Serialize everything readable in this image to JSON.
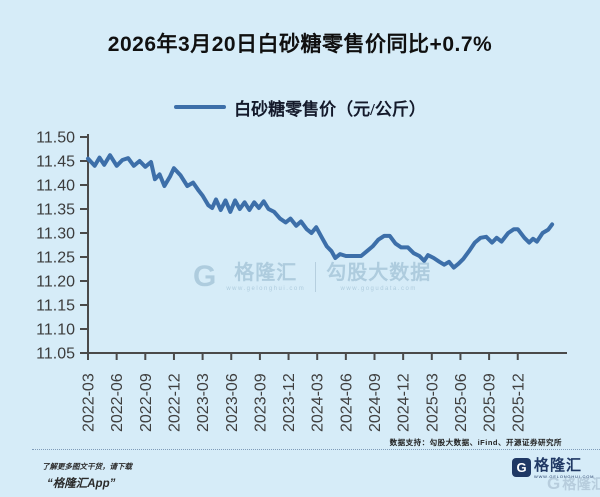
{
  "page": {
    "background": "#d6ecf8"
  },
  "title": "2026年3月20日白砂糖零售价同比+0.7%",
  "legend": {
    "label": "白砂糖零售价（元/公斤）",
    "line_color": "#3d6fa9"
  },
  "watermark": {
    "logo_letter": "G",
    "brand": "格隆汇",
    "brand_url": "www.gelonghui.com",
    "data_brand": "勾股大数据",
    "data_url": "www.gogudata.com"
  },
  "footer": {
    "data_support": "数据支持：勾股大数据、iFind、开源证券研究所",
    "promo_line1": "了解更多图文干货，请下载",
    "promo_line2": "“格隆汇App”",
    "brand_logo_letter": "G",
    "brand": "格隆汇",
    "brand_url": "WWW.GELONGHUI.COM",
    "brand_color": "#1f3864",
    "corner_logo_letter": "G",
    "corner_watermark": "格隆汇"
  },
  "chart_data": {
    "type": "line",
    "title": "白砂糖零售价（元/公斤）",
    "ylabel": "元/公斤",
    "xlabel": "",
    "ylim": [
      11.05,
      11.5
    ],
    "grid": false,
    "legend_position": "top-center",
    "line_color": "#3d6fa9",
    "axis_color": "#4a4a4a",
    "y_ticks": [
      "11.50",
      "11.45",
      "11.40",
      "11.35",
      "11.30",
      "11.25",
      "11.20",
      "11.15",
      "11.10",
      "11.05"
    ],
    "x_tick_labels": [
      "2022-03",
      "2022-06",
      "2022-09",
      "2022-12",
      "2023-03",
      "2023-06",
      "2023-09",
      "2023-12",
      "2024-03",
      "2024-06",
      "2024-09",
      "2024-12",
      "2025-03",
      "2025-06",
      "2025-09",
      "2025-12"
    ],
    "x_unit": "months since 2022-03, series ends 2026-03-20",
    "points": [
      [
        0,
        11.455
      ],
      [
        0.7,
        11.44
      ],
      [
        1.2,
        11.457
      ],
      [
        1.7,
        11.442
      ],
      [
        2.3,
        11.462
      ],
      [
        3,
        11.44
      ],
      [
        3.6,
        11.452
      ],
      [
        4.2,
        11.456
      ],
      [
        4.8,
        11.44
      ],
      [
        5.4,
        11.45
      ],
      [
        6,
        11.438
      ],
      [
        6.6,
        11.448
      ],
      [
        7,
        11.412
      ],
      [
        7.5,
        11.422
      ],
      [
        8,
        11.398
      ],
      [
        8.6,
        11.418
      ],
      [
        9,
        11.435
      ],
      [
        9.7,
        11.42
      ],
      [
        10.4,
        11.398
      ],
      [
        11,
        11.405
      ],
      [
        11.6,
        11.388
      ],
      [
        12,
        11.378
      ],
      [
        12.6,
        11.358
      ],
      [
        13,
        11.352
      ],
      [
        13.4,
        11.37
      ],
      [
        13.9,
        11.348
      ],
      [
        14.4,
        11.368
      ],
      [
        14.9,
        11.344
      ],
      [
        15.4,
        11.368
      ],
      [
        15.9,
        11.35
      ],
      [
        16.4,
        11.364
      ],
      [
        16.9,
        11.348
      ],
      [
        17.4,
        11.364
      ],
      [
        17.9,
        11.352
      ],
      [
        18.4,
        11.366
      ],
      [
        18.9,
        11.35
      ],
      [
        19.5,
        11.344
      ],
      [
        20.1,
        11.33
      ],
      [
        20.7,
        11.322
      ],
      [
        21.2,
        11.33
      ],
      [
        21.8,
        11.315
      ],
      [
        22.3,
        11.324
      ],
      [
        22.9,
        11.308
      ],
      [
        23.4,
        11.3
      ],
      [
        23.9,
        11.312
      ],
      [
        24.5,
        11.29
      ],
      [
        25,
        11.272
      ],
      [
        25.5,
        11.262
      ],
      [
        25.9,
        11.248
      ],
      [
        26.4,
        11.256
      ],
      [
        27,
        11.252
      ],
      [
        27.8,
        11.252
      ],
      [
        28.6,
        11.252
      ],
      [
        29.2,
        11.262
      ],
      [
        29.8,
        11.272
      ],
      [
        30.4,
        11.286
      ],
      [
        31,
        11.294
      ],
      [
        31.6,
        11.294
      ],
      [
        32.2,
        11.278
      ],
      [
        32.8,
        11.27
      ],
      [
        33.5,
        11.27
      ],
      [
        34.1,
        11.258
      ],
      [
        34.7,
        11.252
      ],
      [
        35.2,
        11.242
      ],
      [
        35.6,
        11.254
      ],
      [
        36.2,
        11.248
      ],
      [
        36.8,
        11.24
      ],
      [
        37.3,
        11.234
      ],
      [
        37.8,
        11.24
      ],
      [
        38.3,
        11.228
      ],
      [
        38.8,
        11.236
      ],
      [
        39.3,
        11.246
      ],
      [
        39.9,
        11.262
      ],
      [
        40.5,
        11.28
      ],
      [
        41.1,
        11.29
      ],
      [
        41.7,
        11.292
      ],
      [
        42.3,
        11.28
      ],
      [
        42.8,
        11.29
      ],
      [
        43.3,
        11.282
      ],
      [
        44,
        11.3
      ],
      [
        44.6,
        11.308
      ],
      [
        45,
        11.308
      ],
      [
        45.7,
        11.29
      ],
      [
        46.2,
        11.28
      ],
      [
        46.6,
        11.288
      ],
      [
        47,
        11.282
      ],
      [
        47.6,
        11.3
      ],
      [
        48.2,
        11.307
      ],
      [
        48.6,
        11.318
      ]
    ]
  }
}
